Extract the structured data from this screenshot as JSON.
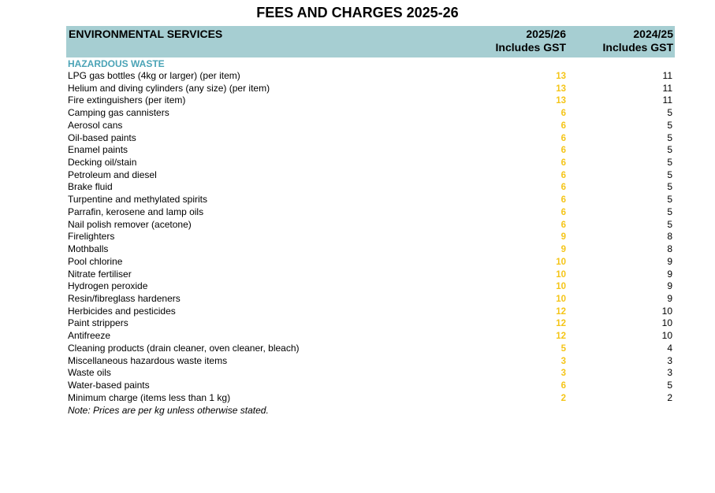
{
  "page_title": "FEES AND CHARGES 2025-26",
  "header": {
    "section": "ENVIRONMENTAL SERVICES",
    "col_current_year": "2025/26",
    "col_current_sub": "Includes GST",
    "col_prev_year": "2024/25",
    "col_prev_sub": "Includes GST"
  },
  "category": "HAZARDOUS WASTE",
  "items": [
    {
      "name": "LPG gas bottles (4kg or larger) (per item)",
      "fee_2025": "13",
      "fee_2024": "11"
    },
    {
      "name": "Helium and diving cylinders (any size) (per item)",
      "fee_2025": "13",
      "fee_2024": "11"
    },
    {
      "name": "Fire extinguishers (per item)",
      "fee_2025": "13",
      "fee_2024": "11"
    },
    {
      "name": "Camping gas cannisters",
      "fee_2025": "6",
      "fee_2024": "5"
    },
    {
      "name": "Aerosol cans",
      "fee_2025": "6",
      "fee_2024": "5"
    },
    {
      "name": "Oil-based paints",
      "fee_2025": "6",
      "fee_2024": "5"
    },
    {
      "name": "Enamel paints",
      "fee_2025": "6",
      "fee_2024": "5"
    },
    {
      "name": "Decking oil/stain",
      "fee_2025": "6",
      "fee_2024": "5"
    },
    {
      "name": "Petroleum and diesel",
      "fee_2025": "6",
      "fee_2024": "5"
    },
    {
      "name": "Brake fluid",
      "fee_2025": "6",
      "fee_2024": "5"
    },
    {
      "name": "Turpentine and methylated spirits",
      "fee_2025": "6",
      "fee_2024": "5"
    },
    {
      "name": "Parrafin, kerosene and lamp oils",
      "fee_2025": "6",
      "fee_2024": "5"
    },
    {
      "name": "Nail polish remover (acetone)",
      "fee_2025": "6",
      "fee_2024": "5"
    },
    {
      "name": "Firelighters",
      "fee_2025": "9",
      "fee_2024": "8"
    },
    {
      "name": "Mothballs",
      "fee_2025": "9",
      "fee_2024": "8"
    },
    {
      "name": "Pool chlorine",
      "fee_2025": "10",
      "fee_2024": "9"
    },
    {
      "name": "Nitrate fertiliser",
      "fee_2025": "10",
      "fee_2024": "9"
    },
    {
      "name": "Hydrogen peroxide",
      "fee_2025": "10",
      "fee_2024": "9"
    },
    {
      "name": "Resin/fibreglass hardeners",
      "fee_2025": "10",
      "fee_2024": "9"
    },
    {
      "name": "Herbicides and pesticides",
      "fee_2025": "12",
      "fee_2024": "10"
    },
    {
      "name": "Paint strippers",
      "fee_2025": "12",
      "fee_2024": "10"
    },
    {
      "name": "Antifreeze",
      "fee_2025": "12",
      "fee_2024": "10"
    },
    {
      "name": "Cleaning products (drain cleaner, oven cleaner, bleach)",
      "fee_2025": "5",
      "fee_2024": "4"
    },
    {
      "name": "Miscellaneous hazardous waste items",
      "fee_2025": "3",
      "fee_2024": "3"
    },
    {
      "name": "Waste oils",
      "fee_2025": "3",
      "fee_2024": "3"
    },
    {
      "name": "Water-based paints",
      "fee_2025": "6",
      "fee_2024": "5"
    },
    {
      "name": "Minimum charge (items less than 1 kg)",
      "fee_2025": "2",
      "fee_2024": "2"
    }
  ],
  "note": "Note: Prices are per kg unless otherwise stated.",
  "colors": {
    "header_bg": "#a6ced2",
    "category_text": "#4aa3b6",
    "current_fee_text": "#f5c518"
  }
}
